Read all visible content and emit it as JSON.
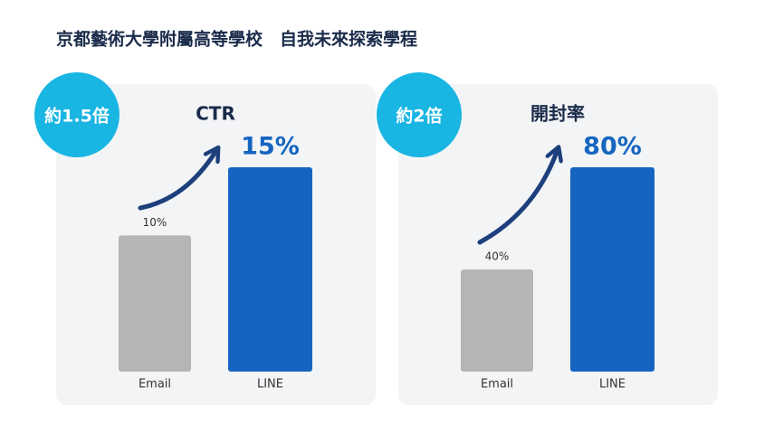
{
  "title": "京都藝術大學附屬高等學校　自我未來探索學程",
  "chart_data": [
    {
      "type": "bar",
      "title": "CTR",
      "badge": "約1.5倍",
      "categories": [
        "Email",
        "LINE"
      ],
      "values": [
        10,
        15
      ],
      "value_labels": [
        "10%",
        "15%"
      ],
      "colors": [
        "#b5b5b5",
        "#1565c0"
      ]
    },
    {
      "type": "bar",
      "title": "開封率",
      "badge": "約2倍",
      "categories": [
        "Email",
        "LINE"
      ],
      "values": [
        40,
        80
      ],
      "value_labels": [
        "40%",
        "80%"
      ],
      "colors": [
        "#b5b5b5",
        "#1565c0"
      ]
    }
  ]
}
